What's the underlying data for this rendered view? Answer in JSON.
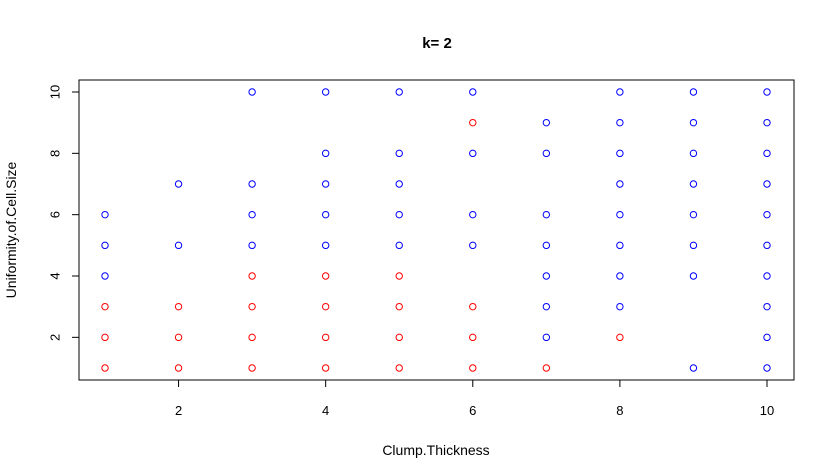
{
  "chart_data": {
    "type": "scatter",
    "title": "k= 2",
    "xlabel": "Clump.Thickness",
    "ylabel": "Uniformity.of.Cell.Size",
    "xlim": [
      1,
      10
    ],
    "ylim": [
      1,
      10
    ],
    "xticks": [
      2,
      4,
      6,
      8,
      10
    ],
    "yticks": [
      2,
      4,
      6,
      8,
      10
    ],
    "grid": false,
    "marker": "open-circle",
    "series": [
      {
        "color": "#ff0000",
        "points": [
          [
            1,
            1
          ],
          [
            1,
            2
          ],
          [
            1,
            3
          ],
          [
            2,
            1
          ],
          [
            2,
            2
          ],
          [
            2,
            3
          ],
          [
            3,
            1
          ],
          [
            3,
            2
          ],
          [
            3,
            3
          ],
          [
            3,
            4
          ],
          [
            4,
            1
          ],
          [
            4,
            2
          ],
          [
            4,
            3
          ],
          [
            4,
            4
          ],
          [
            5,
            1
          ],
          [
            5,
            2
          ],
          [
            5,
            3
          ],
          [
            5,
            4
          ],
          [
            6,
            1
          ],
          [
            6,
            2
          ],
          [
            6,
            3
          ],
          [
            6,
            9
          ],
          [
            7,
            1
          ],
          [
            8,
            2
          ]
        ]
      },
      {
        "color": "#0000ff",
        "points": [
          [
            1,
            4
          ],
          [
            1,
            5
          ],
          [
            1,
            6
          ],
          [
            2,
            5
          ],
          [
            2,
            7
          ],
          [
            3,
            5
          ],
          [
            3,
            6
          ],
          [
            3,
            7
          ],
          [
            3,
            10
          ],
          [
            4,
            5
          ],
          [
            4,
            6
          ],
          [
            4,
            7
          ],
          [
            4,
            8
          ],
          [
            4,
            10
          ],
          [
            5,
            5
          ],
          [
            5,
            6
          ],
          [
            5,
            7
          ],
          [
            5,
            8
          ],
          [
            5,
            10
          ],
          [
            6,
            5
          ],
          [
            6,
            6
          ],
          [
            6,
            8
          ],
          [
            6,
            10
          ],
          [
            7,
            2
          ],
          [
            7,
            3
          ],
          [
            7,
            4
          ],
          [
            7,
            5
          ],
          [
            7,
            6
          ],
          [
            7,
            8
          ],
          [
            7,
            9
          ],
          [
            8,
            3
          ],
          [
            8,
            4
          ],
          [
            8,
            5
          ],
          [
            8,
            6
          ],
          [
            8,
            7
          ],
          [
            8,
            8
          ],
          [
            8,
            9
          ],
          [
            8,
            10
          ],
          [
            9,
            1
          ],
          [
            9,
            4
          ],
          [
            9,
            5
          ],
          [
            9,
            6
          ],
          [
            9,
            7
          ],
          [
            9,
            8
          ],
          [
            9,
            9
          ],
          [
            9,
            10
          ],
          [
            10,
            1
          ],
          [
            10,
            2
          ],
          [
            10,
            3
          ],
          [
            10,
            4
          ],
          [
            10,
            5
          ],
          [
            10,
            6
          ],
          [
            10,
            7
          ],
          [
            10,
            8
          ],
          [
            10,
            9
          ],
          [
            10,
            10
          ]
        ]
      }
    ]
  }
}
